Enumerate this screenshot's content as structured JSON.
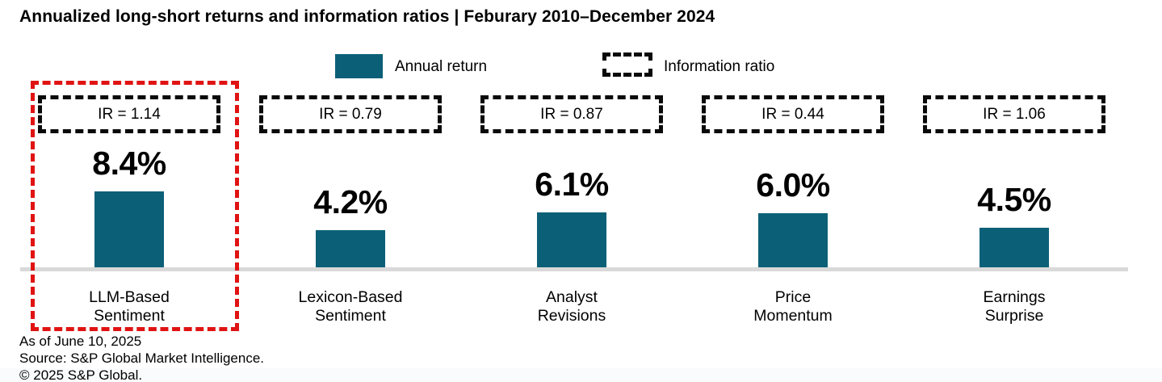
{
  "title": "Annualized long-short returns and information ratios | Feburary 2010–December 2024",
  "legend": {
    "annual_return_label": "Annual return",
    "information_ratio_label": "Information ratio"
  },
  "colors": {
    "bar": "#0B6077",
    "highlight": "#E01313",
    "dashed_box": "#0A0A0A",
    "baseline": "#D9D9D9"
  },
  "columns": [
    {
      "ir_label": "IR = 1.14",
      "value_label": "8.4%",
      "name_line1": "LLM-Based",
      "name_line2": "Sentiment",
      "highlighted": true
    },
    {
      "ir_label": "IR = 0.79",
      "value_label": "4.2%",
      "name_line1": "Lexicon-Based",
      "name_line2": "Sentiment",
      "highlighted": false
    },
    {
      "ir_label": "IR = 0.87",
      "value_label": "6.1%",
      "name_line1": "Analyst",
      "name_line2": "Revisions",
      "highlighted": false
    },
    {
      "ir_label": "IR = 0.44",
      "value_label": "6.0%",
      "name_line1": "Price",
      "name_line2": "Momentum",
      "highlighted": false
    },
    {
      "ir_label": "IR = 1.06",
      "value_label": "4.5%",
      "name_line1": "Earnings",
      "name_line2": "Surprise",
      "highlighted": false
    }
  ],
  "footer": {
    "as_of": "As of June 10, 2025",
    "source": "Source: S&P Global Market Intelligence.",
    "copyright": "© 2025 S&P Global."
  },
  "chart_data": {
    "type": "bar",
    "title": "Annualized long-short returns and information ratios | Feburary 2010–December 2024",
    "categories": [
      "LLM-Based Sentiment",
      "Lexicon-Based Sentiment",
      "Analyst Revisions",
      "Price Momentum",
      "Earnings Surprise"
    ],
    "values": [
      8.4,
      4.2,
      6.1,
      6.0,
      4.5
    ],
    "series": [
      {
        "name": "Annual return",
        "unit": "%",
        "values": [
          8.4,
          4.2,
          6.1,
          6.0,
          4.5
        ]
      },
      {
        "name": "Information ratio",
        "values": [
          1.14,
          0.79,
          0.87,
          0.44,
          1.06
        ]
      }
    ],
    "xlabel": "",
    "ylabel": "",
    "ylim": [
      0,
      10
    ],
    "grid": false,
    "legend_position": "top",
    "highlighted_category": "LLM-Based Sentiment",
    "annotations": [
      "IR = 1.14",
      "IR = 0.79",
      "IR = 0.87",
      "IR = 0.44",
      "IR = 1.06"
    ]
  }
}
